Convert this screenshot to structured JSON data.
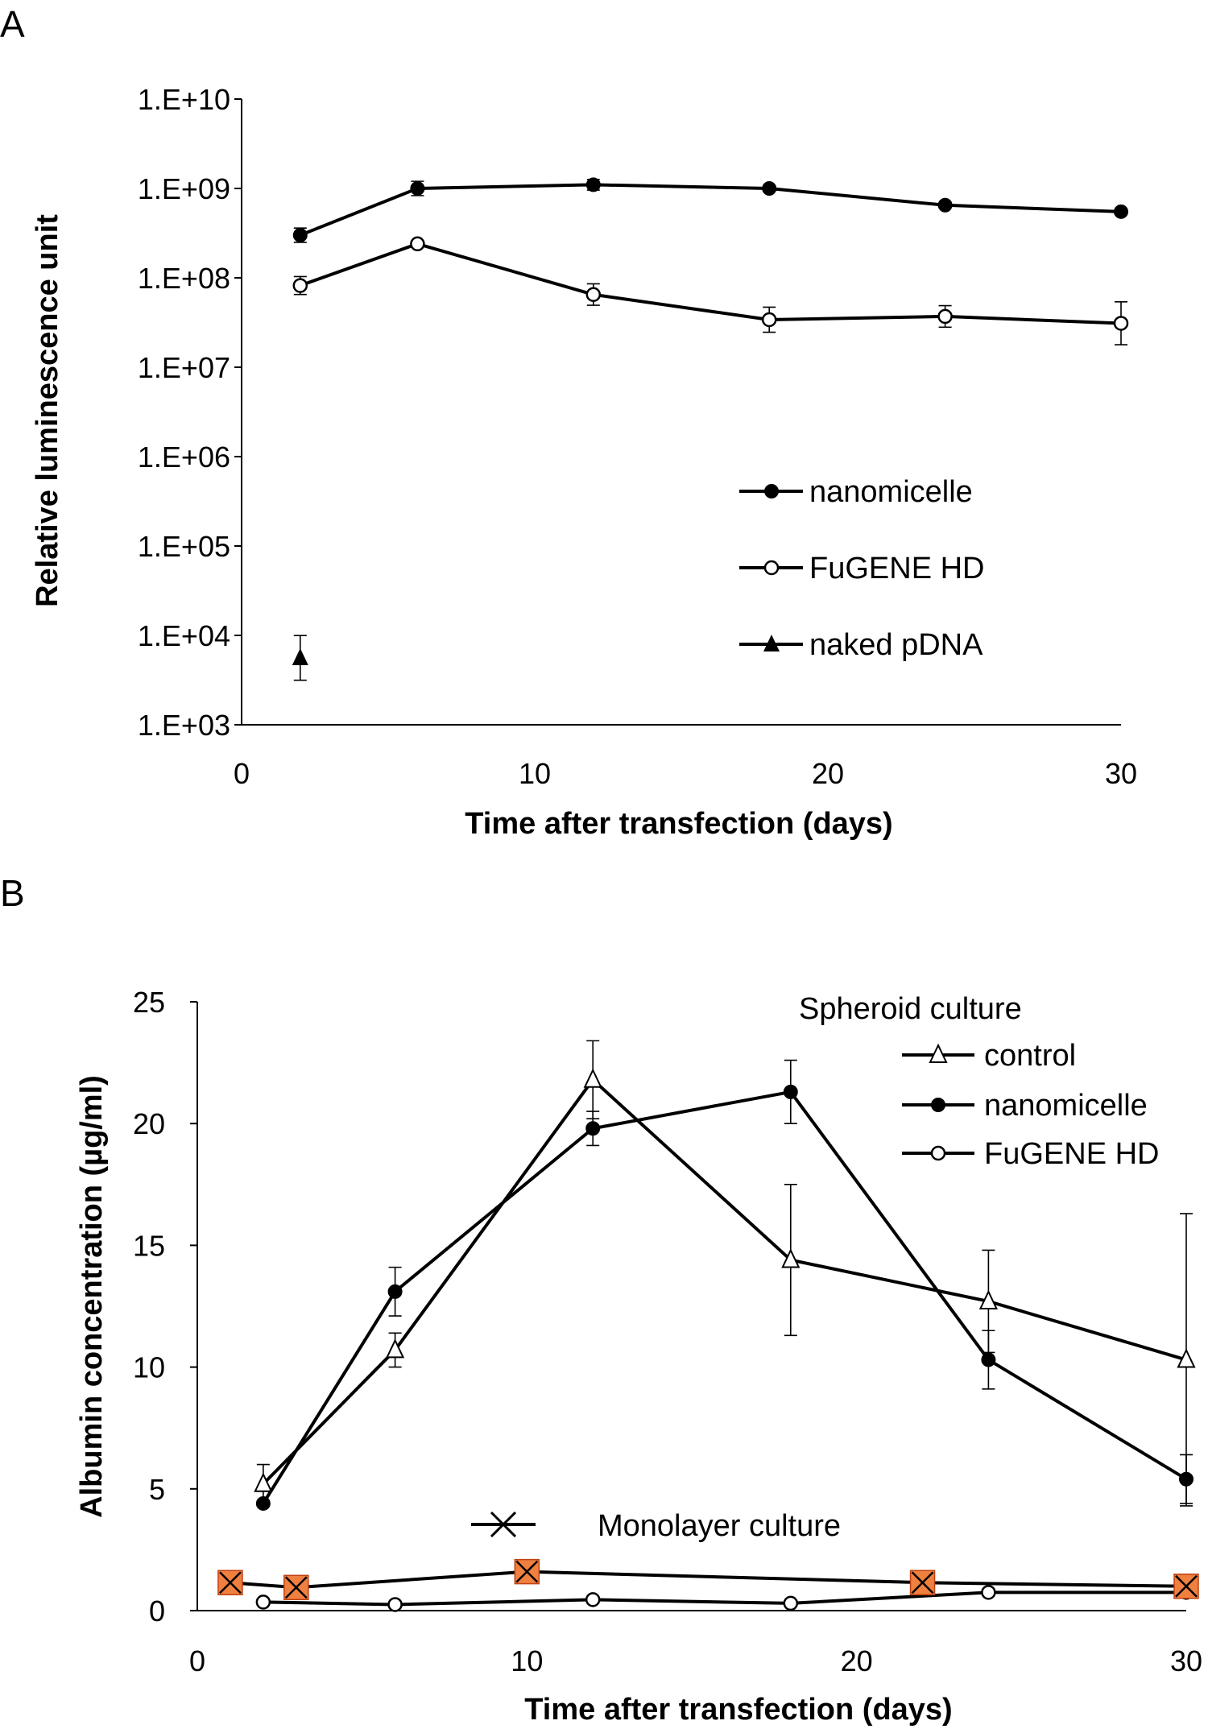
{
  "chart_data": [
    {
      "panel": "A",
      "type": "line",
      "yscale": "log",
      "ylabel": "Relative luminescence unit",
      "xlabel": "Time after transfection (days)",
      "xlim": [
        0,
        30
      ],
      "ylim": [
        1000,
        10000000000
      ],
      "xticks": [
        "0",
        "10",
        "20",
        "30"
      ],
      "yticks": [
        "1.E+03",
        "1.E+04",
        "1.E+05",
        "1.E+06",
        "1.E+07",
        "1.E+08",
        "1.E+09",
        "1.E+10"
      ],
      "legend_position": "lower-right",
      "series": [
        {
          "name": "nanomicelle",
          "marker": "filled-circle",
          "x": [
            2,
            6,
            12,
            18,
            24,
            30
          ],
          "values": [
            300000000,
            1000000000,
            1100000000,
            1000000000,
            650000000,
            550000000
          ],
          "err": [
            0.08,
            0.08,
            0.06,
            0,
            0,
            0
          ]
        },
        {
          "name": "FuGENE HD",
          "marker": "open-circle",
          "x": [
            2,
            6,
            12,
            18,
            24,
            30
          ],
          "values": [
            82000000,
            240000000,
            65000000,
            34000000,
            37000000,
            31000000
          ],
          "err": [
            0.1,
            0,
            0.12,
            0.14,
            0.12,
            0.24
          ]
        },
        {
          "name": "naked pDNA",
          "marker": "filled-triangle",
          "x": [
            2
          ],
          "values": [
            5600
          ],
          "err": [
            0.25
          ]
        }
      ]
    },
    {
      "panel": "B",
      "type": "line",
      "ylabel": "Albumin concentration (µg/ml)",
      "xlabel": "Time after transfection (days)",
      "xlim": [
        0,
        30
      ],
      "ylim": [
        0,
        25
      ],
      "xticks": [
        "0",
        "10",
        "20",
        "30"
      ],
      "yticks": [
        "0",
        "5",
        "10",
        "15",
        "20",
        "25"
      ],
      "legend_title": "Spheroid culture",
      "legend_position": "top-right",
      "monolayer_label": "Monolayer culture",
      "series": [
        {
          "name": "control",
          "marker": "open-triangle",
          "x": [
            2,
            6,
            12,
            18,
            24,
            30
          ],
          "values": [
            5.2,
            10.7,
            21.8,
            14.4,
            12.7,
            10.3
          ],
          "err": [
            0.8,
            0.7,
            1.6,
            3.1,
            2.1,
            6.0
          ]
        },
        {
          "name": "nanomicelle",
          "marker": "filled-circle",
          "x": [
            2,
            6,
            12,
            18,
            24,
            30
          ],
          "values": [
            4.4,
            13.1,
            19.8,
            21.3,
            10.3,
            5.4
          ],
          "err": [
            0,
            1.0,
            0.7,
            1.3,
            1.2,
            1.0
          ]
        },
        {
          "name": "FuGENE HD",
          "marker": "open-circle",
          "x": [
            2,
            6,
            12,
            18,
            24,
            30
          ],
          "values": [
            0.35,
            0.25,
            0.45,
            0.3,
            0.75,
            0.75
          ],
          "err": [
            0,
            0,
            0,
            0,
            0,
            0
          ]
        },
        {
          "name": "Monolayer culture",
          "marker": "x-square",
          "x": [
            1,
            3,
            10,
            22,
            30
          ],
          "values": [
            1.15,
            0.95,
            1.6,
            1.15,
            1.0
          ],
          "err": [
            0,
            0,
            0,
            0,
            0
          ]
        }
      ]
    }
  ],
  "colors": {
    "axis": "#000000",
    "marker_fill_monolayer": "#f08040"
  }
}
